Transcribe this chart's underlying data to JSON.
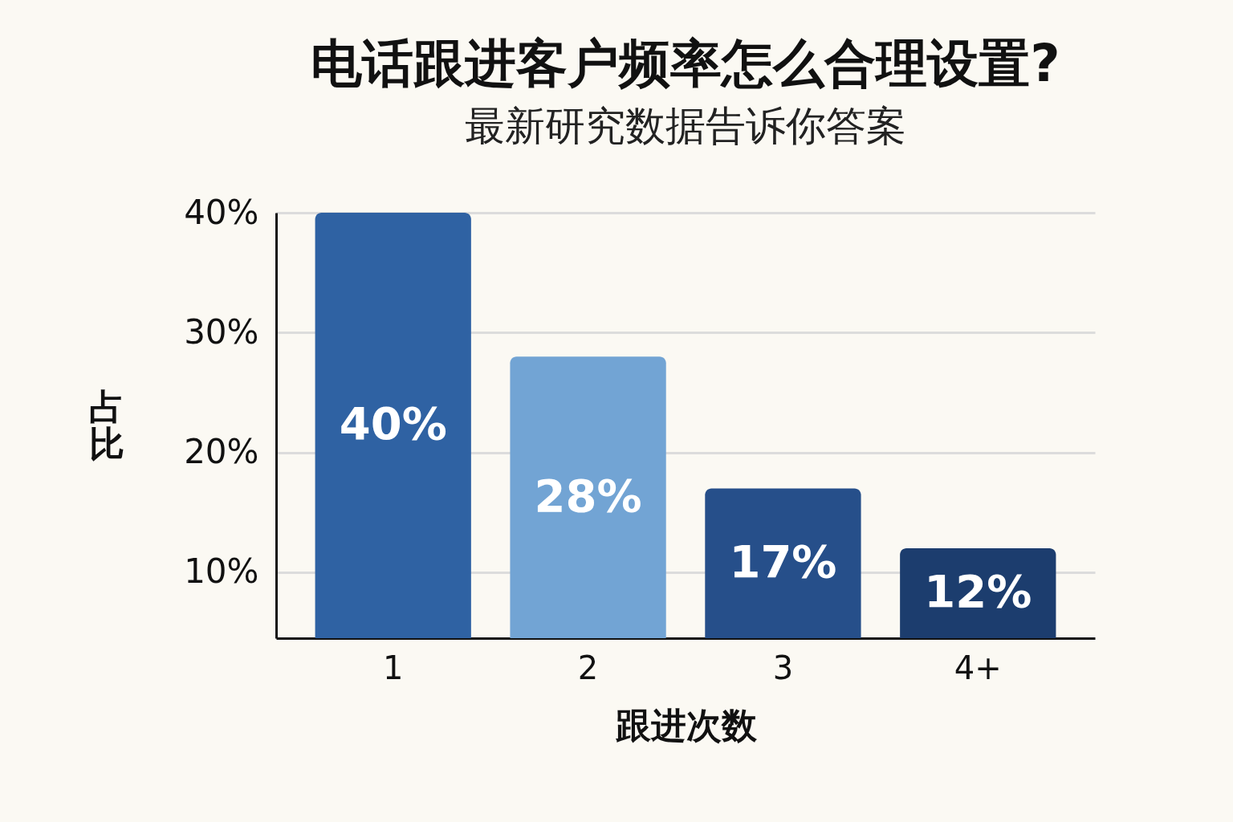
{
  "chart_data": {
    "type": "bar",
    "title": "电话跟进客户频率怎么合理设置?",
    "subtitle": "最新研究数据告诉你答案",
    "xlabel": "跟进次数",
    "ylabel": "占比",
    "categories": [
      "1",
      "2",
      "3",
      "4+"
    ],
    "values": [
      40,
      28,
      17,
      12
    ],
    "value_labels": [
      "40%",
      "28%",
      "17%",
      "12%"
    ],
    "colors": [
      "#2f62a3",
      "#72a4d4",
      "#264f8a",
      "#1c3d6e"
    ],
    "ylim": [
      4.5,
      40
    ],
    "yticks": [
      {
        "value": 10,
        "label": "10%"
      },
      {
        "value": 20,
        "label": "20%"
      },
      {
        "value": 30,
        "label": "30%"
      },
      {
        "value": 40,
        "label": "40%"
      }
    ],
    "grid": "y"
  }
}
